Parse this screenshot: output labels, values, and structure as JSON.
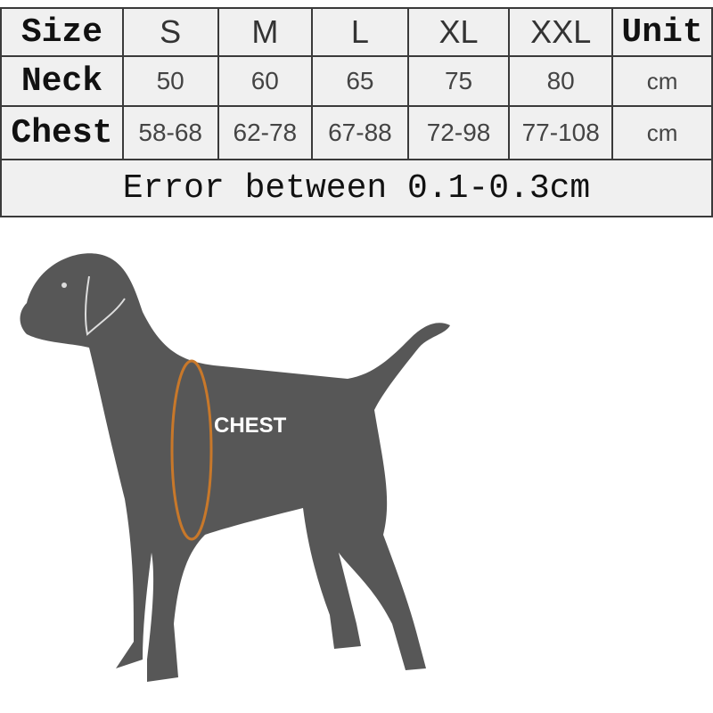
{
  "table": {
    "header": {
      "label": "Size",
      "sizes": [
        "S",
        "M",
        "L",
        "XL",
        "XXL"
      ],
      "unit": "Unit"
    },
    "rows": [
      {
        "label": "Neck",
        "values": [
          "50",
          "60",
          "65",
          "75",
          "80"
        ],
        "unit": "cm"
      },
      {
        "label": "Chest",
        "values": [
          "58-68",
          "62-78",
          "67-88",
          "72-98",
          "77-108"
        ],
        "unit": "cm"
      }
    ],
    "note": "Error between 0.1-0.3cm"
  },
  "illustration": {
    "chest_label": "CHEST",
    "silhouette_color": "#575757",
    "measure_color": "#c8782a"
  }
}
